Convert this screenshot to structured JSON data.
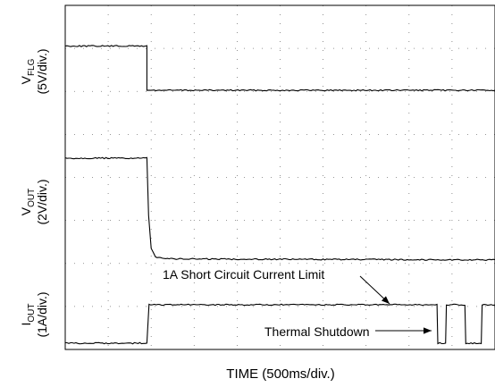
{
  "chart_data": {
    "type": "line",
    "xlabel": "TIME (500ms/div.)",
    "x_divisions": 10,
    "y_divisions": 8,
    "grid": true,
    "traces": [
      {
        "id": "vflg",
        "label_main": "V",
        "label_sub": "FLG",
        "label_scale": "(5V/div.)",
        "unit": "V",
        "volts_per_div": 5,
        "points": [
          [
            0,
            5
          ],
          [
            1.9,
            5
          ],
          [
            1.9,
            0
          ],
          [
            2.15,
            0
          ],
          [
            10,
            0
          ]
        ]
      },
      {
        "id": "vout",
        "label_main": "V",
        "label_sub": "OUT",
        "label_scale": "(2V/div.)",
        "unit": "V",
        "volts_per_div": 2,
        "points": [
          [
            0,
            5
          ],
          [
            1.9,
            5
          ],
          [
            1.94,
            2.2
          ],
          [
            2.0,
            0.6
          ],
          [
            2.1,
            0.2
          ],
          [
            2.5,
            0.1
          ],
          [
            10,
            0.05
          ]
        ]
      },
      {
        "id": "iout",
        "label_main": "I",
        "label_sub": "OUT",
        "label_scale": "(1A/div.)",
        "unit": "A",
        "amps_per_div": 1,
        "points": [
          [
            0,
            0
          ],
          [
            1.9,
            0
          ],
          [
            1.95,
            1
          ],
          [
            8.65,
            1
          ],
          [
            8.67,
            0
          ],
          [
            8.85,
            0
          ],
          [
            8.87,
            1
          ],
          [
            9.3,
            1
          ],
          [
            9.32,
            0
          ],
          [
            9.68,
            0
          ],
          [
            9.7,
            1
          ],
          [
            10,
            1
          ]
        ]
      }
    ],
    "annotations": [
      {
        "id": "short-circuit-current-limit",
        "text": "1A Short Circuit Current Limit"
      },
      {
        "id": "thermal-shutdown",
        "text": "Thermal Shutdown"
      }
    ]
  }
}
